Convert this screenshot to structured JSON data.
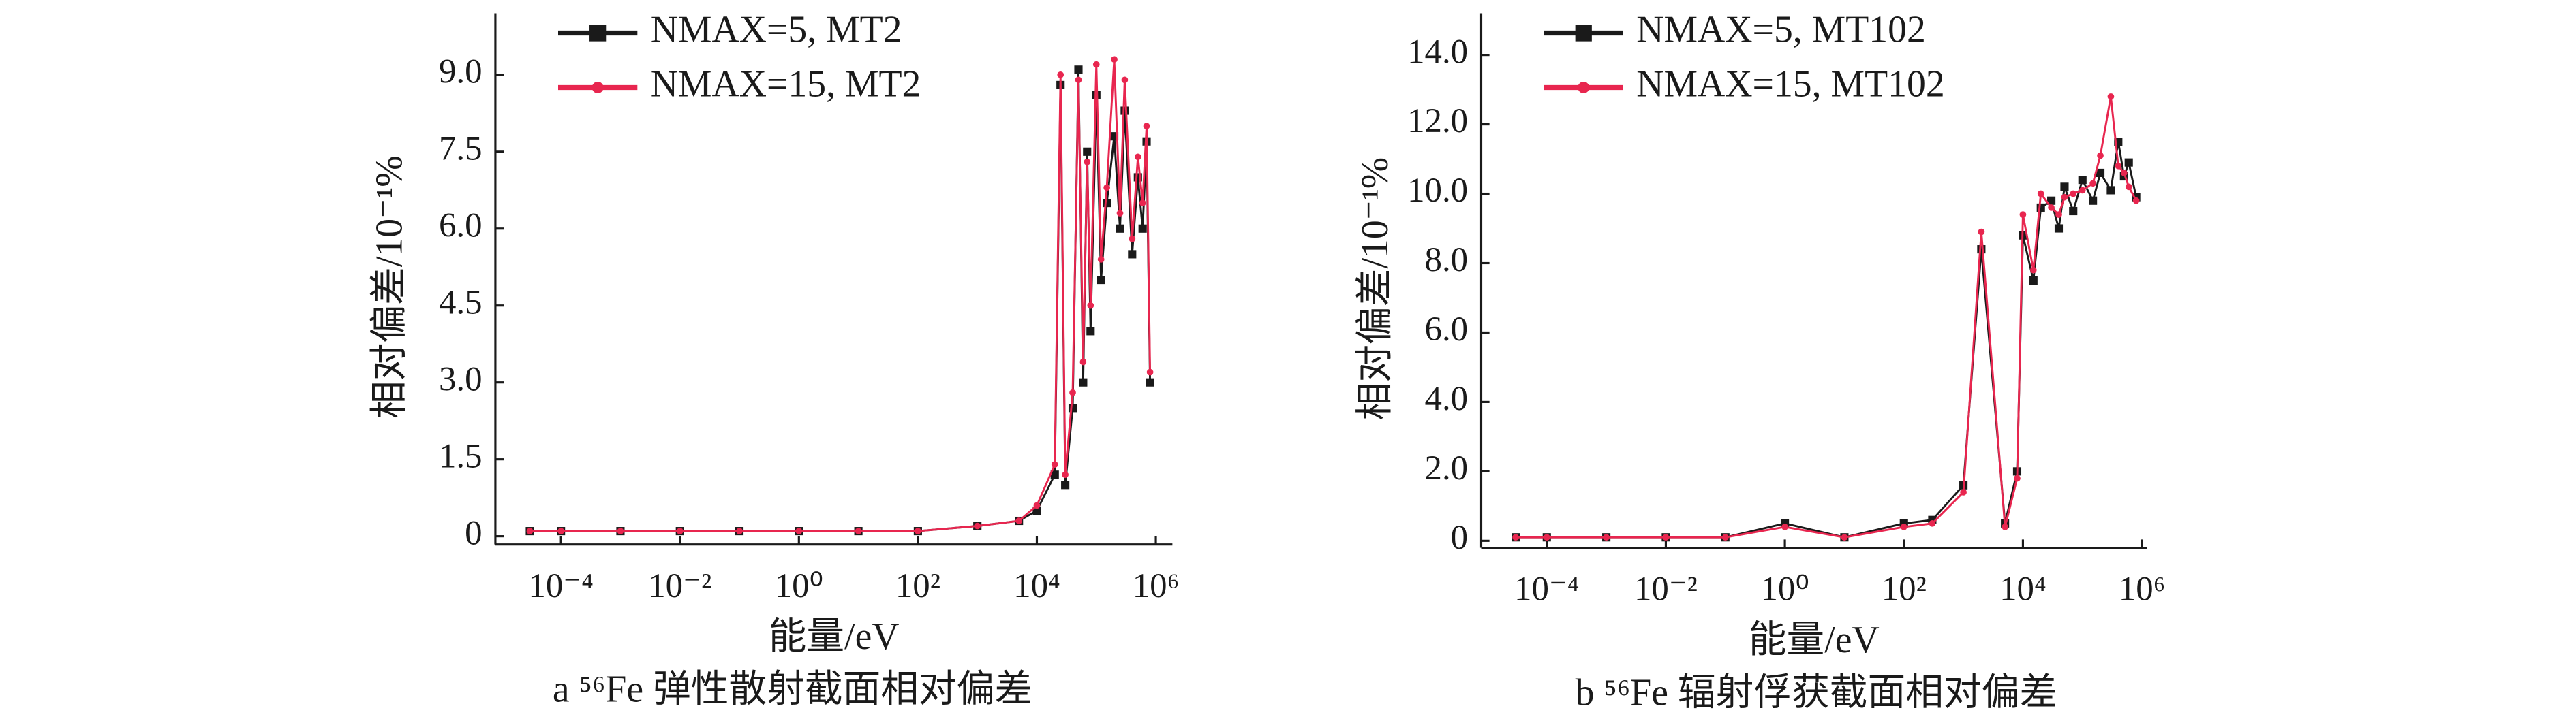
{
  "chart_data": [
    {
      "type": "line",
      "caption": "a ⁵⁶Fe 弹性散射截面相对偏差",
      "xlabel": "能量/eV",
      "ylabel": "相对偏差/10⁻¹%",
      "xscale": "log",
      "legend": "upper left",
      "grid": false,
      "xlim": [
        7.9e-06,
        1900000
      ],
      "ylim": [
        -0.16,
        10.2
      ],
      "xticks": [
        {
          "value": 0.0001,
          "label": "10⁻⁴"
        },
        {
          "value": 0.01,
          "label": "10⁻²"
        },
        {
          "value": 1,
          "label": "10⁰"
        },
        {
          "value": 100,
          "label": "10²"
        },
        {
          "value": 10000,
          "label": "10⁴"
        },
        {
          "value": 1000000,
          "label": "10⁶"
        }
      ],
      "yticks": [
        0,
        {
          "value": 1.5,
          "label": "1.5"
        },
        {
          "value": 3,
          "label": "3.0"
        },
        {
          "value": 4.5,
          "label": "4.5"
        },
        {
          "value": 6,
          "label": "6.0"
        },
        {
          "value": 7.5,
          "label": "7.5"
        },
        {
          "value": 9,
          "label": "9.0"
        }
      ],
      "x": [
        3e-05,
        0.0001,
        0.001,
        0.01,
        0.1,
        1,
        10,
        100,
        1000,
        5000,
        10000,
        20000,
        25000,
        30000,
        40000,
        50000,
        60000,
        70000,
        80000,
        100000,
        120000,
        150000,
        200000,
        250000,
        300000,
        400000,
        500000,
        600000,
        700000,
        800000
      ],
      "series": [
        {
          "name": "NMAX=5, MT2",
          "color": "#1a1a1a",
          "values": [
            0.1,
            0.1,
            0.1,
            0.1,
            0.1,
            0.1,
            0.1,
            0.1,
            0.2,
            0.3,
            0.5,
            1.2,
            8.8,
            1.0,
            2.5,
            9.1,
            3.0,
            7.5,
            4.0,
            8.6,
            5.0,
            6.5,
            7.8,
            6.0,
            8.3,
            5.5,
            7.0,
            6.0,
            7.7,
            3.0
          ]
        },
        {
          "name": "NMAX=15, MT2",
          "color": "#e8264f",
          "values": [
            0.1,
            0.1,
            0.1,
            0.1,
            0.1,
            0.1,
            0.1,
            0.1,
            0.2,
            0.3,
            0.6,
            1.4,
            9.0,
            1.2,
            2.8,
            8.9,
            3.4,
            7.3,
            4.5,
            9.2,
            5.4,
            6.8,
            9.3,
            6.3,
            8.9,
            5.8,
            7.4,
            6.5,
            8.0,
            3.2
          ]
        }
      ]
    },
    {
      "type": "line",
      "caption": "b ⁵⁶Fe 辐射俘获截面相对偏差",
      "xlabel": "能量/eV",
      "ylabel": "相对偏差/10⁻¹%",
      "xscale": "log",
      "legend": "upper left",
      "grid": false,
      "xlim": [
        7.9e-06,
        1200000
      ],
      "ylim": [
        -0.2,
        15.2
      ],
      "xticks": [
        {
          "value": 0.0001,
          "label": "10⁻⁴"
        },
        {
          "value": 0.01,
          "label": "10⁻²"
        },
        {
          "value": 1,
          "label": "10⁰"
        },
        {
          "value": 100,
          "label": "10²"
        },
        {
          "value": 10000,
          "label": "10⁴"
        },
        {
          "value": 1000000,
          "label": "10⁶"
        }
      ],
      "yticks": [
        0,
        {
          "value": 2,
          "label": "2.0"
        },
        {
          "value": 4,
          "label": "4.0"
        },
        {
          "value": 6,
          "label": "6.0"
        },
        {
          "value": 8,
          "label": "8.0"
        },
        {
          "value": 10,
          "label": "10.0"
        },
        {
          "value": 12,
          "label": "12.0"
        },
        {
          "value": 14,
          "label": "14.0"
        }
      ],
      "x": [
        3e-05,
        0.0001,
        0.001,
        0.01,
        0.1,
        1,
        10,
        100,
        300,
        1000,
        2000,
        5000,
        8000,
        10000,
        15000,
        20000,
        30000,
        40000,
        50000,
        70000,
        100000,
        150000,
        200000,
        300000,
        400000,
        500000,
        600000,
        800000
      ],
      "series": [
        {
          "name": "NMAX=5, MT102",
          "color": "#1a1a1a",
          "values": [
            0.1,
            0.1,
            0.1,
            0.1,
            0.1,
            0.5,
            0.1,
            0.5,
            0.6,
            1.6,
            8.4,
            0.5,
            2.0,
            8.8,
            7.5,
            9.6,
            9.8,
            9.0,
            10.2,
            9.5,
            10.4,
            9.8,
            10.6,
            10.1,
            11.5,
            10.5,
            10.9,
            9.9
          ]
        },
        {
          "name": "NMAX=15, MT102",
          "color": "#e8264f",
          "values": [
            0.1,
            0.1,
            0.1,
            0.1,
            0.1,
            0.4,
            0.1,
            0.4,
            0.5,
            1.4,
            8.9,
            0.4,
            1.8,
            9.4,
            7.8,
            10.0,
            9.6,
            9.4,
            9.9,
            10.0,
            10.1,
            10.3,
            11.1,
            12.8,
            10.8,
            10.6,
            10.2,
            9.8
          ]
        }
      ]
    }
  ]
}
